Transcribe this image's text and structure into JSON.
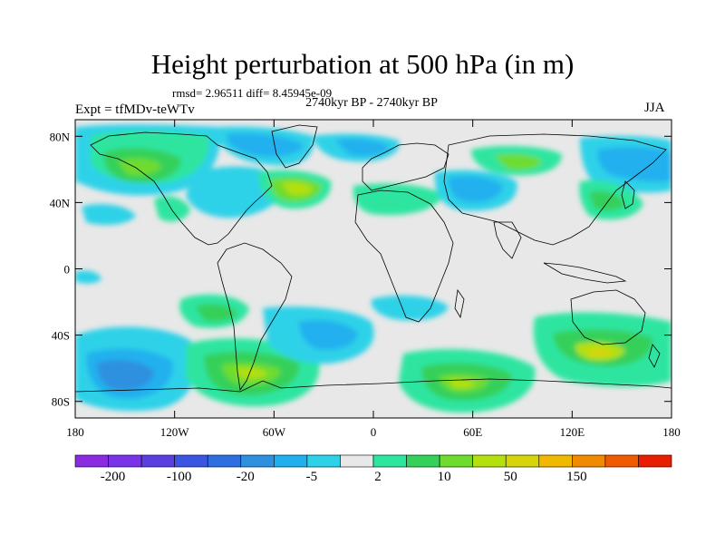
{
  "title": "Height perturbation at 500 hPa (in m)",
  "stats": "rmsd= 2.96511 diff= 8.45945e-09",
  "period": "2740kyr BP - 2740kyr BP",
  "experiment": "Expt = tfMDv-teWTv",
  "season": "JJA",
  "map": {
    "projection": "equirectangular",
    "lon_range": [
      -180,
      180
    ],
    "lat_range": [
      -90,
      90
    ],
    "lat_ticks": [
      "80N",
      "40N",
      "0",
      "40S",
      "80S"
    ],
    "lon_ticks": [
      "180",
      "120W",
      "60W",
      "0",
      "60E",
      "120E",
      "180"
    ],
    "lat_tick_values": [
      80,
      40,
      0,
      -40,
      -80
    ],
    "lon_tick_values": [
      -180,
      -120,
      -60,
      0,
      60,
      120,
      180
    ]
  },
  "colorbar": {
    "colors": [
      "#8a2be2",
      "#7a33e8",
      "#5a3ee0",
      "#3a55e2",
      "#2d6fe0",
      "#2f90e0",
      "#20b0ee",
      "#2dd2e8",
      "#e8e8e8",
      "#2ee5a0",
      "#34d05a",
      "#6edc2e",
      "#b4e010",
      "#d8d40a",
      "#f0b800",
      "#f08a00",
      "#f05a00",
      "#e81e00"
    ],
    "labels": [
      "-200",
      "-100",
      "-20",
      "-5",
      "2",
      "10",
      "50",
      "150"
    ]
  }
}
